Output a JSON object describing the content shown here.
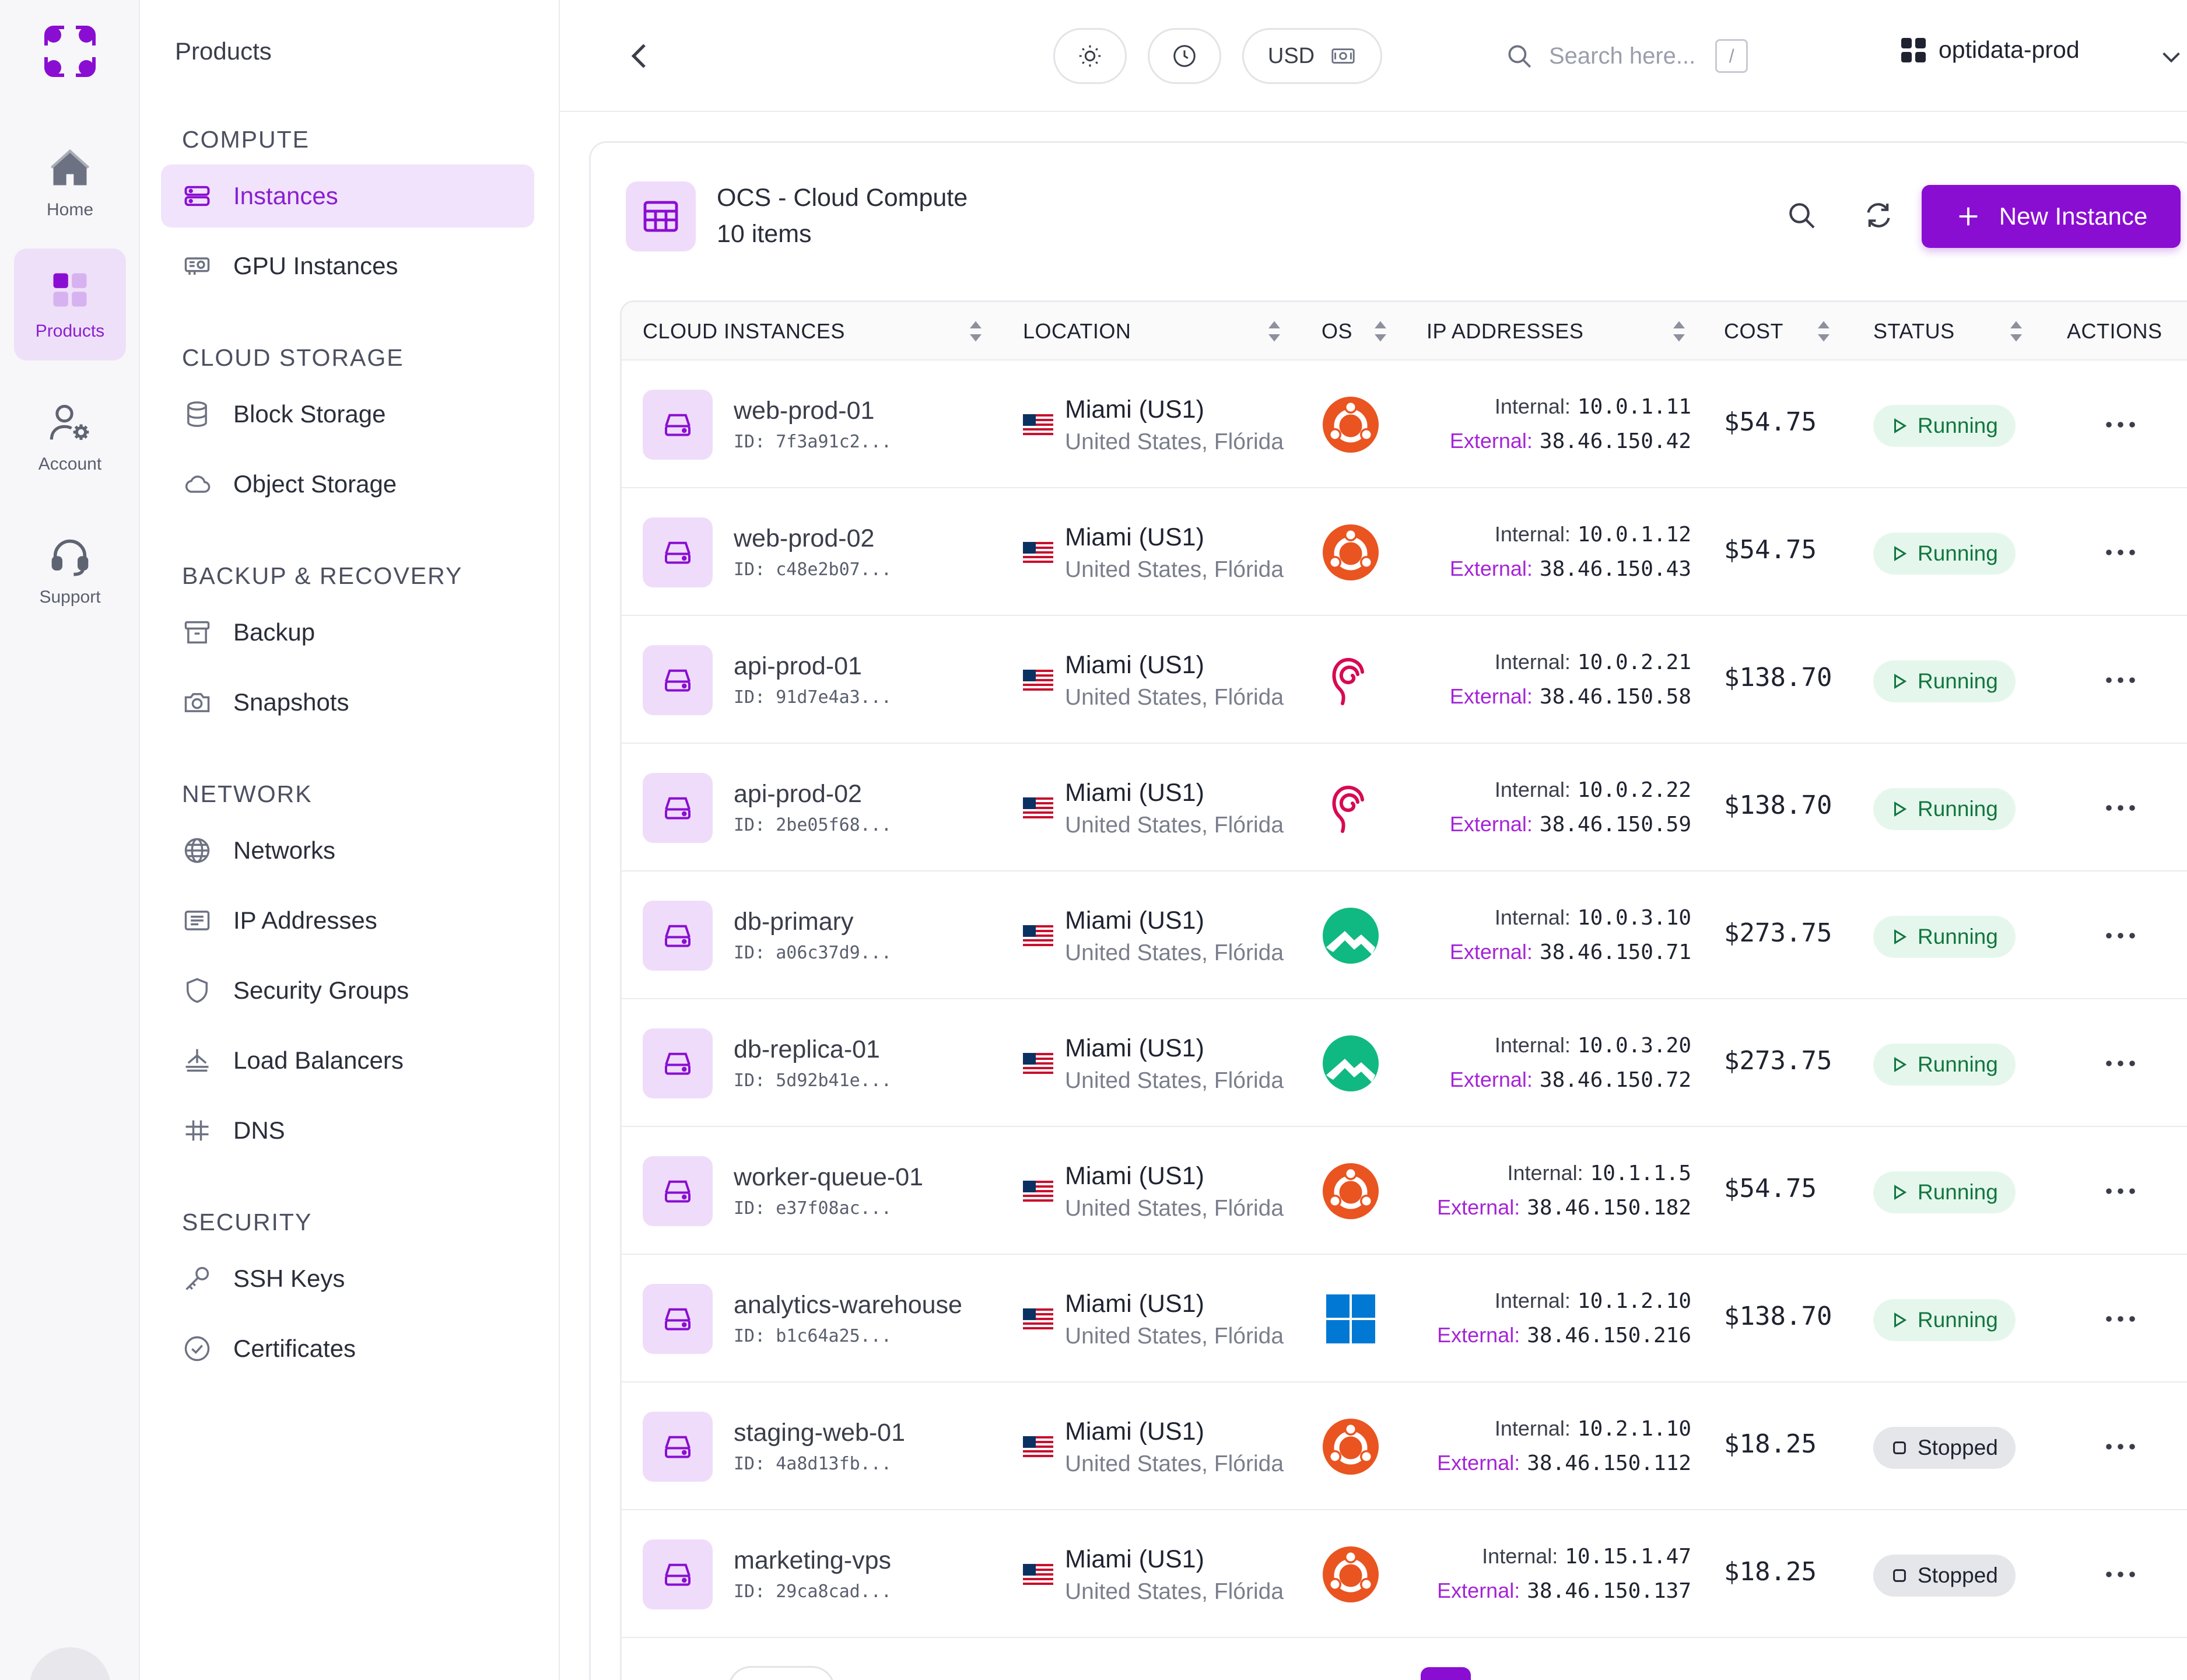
{
  "rail": {
    "items": [
      {
        "label": "Home",
        "icon": "home-icon"
      },
      {
        "label": "Products",
        "icon": "products-icon",
        "active": true
      },
      {
        "label": "Account",
        "icon": "account-icon"
      },
      {
        "label": "Support",
        "icon": "support-icon"
      }
    ]
  },
  "sidebar": {
    "title": "Products",
    "sections": [
      {
        "heading": "COMPUTE",
        "items": [
          {
            "label": "Instances",
            "icon": "server-icon",
            "active": true
          },
          {
            "label": "GPU Instances",
            "icon": "gpu-icon"
          }
        ]
      },
      {
        "heading": "CLOUD STORAGE",
        "items": [
          {
            "label": "Block Storage",
            "icon": "database-icon"
          },
          {
            "label": "Object Storage",
            "icon": "cloud-icon"
          }
        ]
      },
      {
        "heading": "BACKUP & RECOVERY",
        "items": [
          {
            "label": "Backup",
            "icon": "archive-icon"
          },
          {
            "label": "Snapshots",
            "icon": "camera-icon"
          }
        ]
      },
      {
        "heading": "NETWORK",
        "items": [
          {
            "label": "Networks",
            "icon": "globe-icon"
          },
          {
            "label": "IP Addresses",
            "icon": "ip-list-icon"
          },
          {
            "label": "Security Groups",
            "icon": "shield-icon"
          },
          {
            "label": "Load Balancers",
            "icon": "balancer-icon"
          },
          {
            "label": "DNS",
            "icon": "dns-icon"
          }
        ]
      },
      {
        "heading": "SECURITY",
        "items": [
          {
            "label": "SSH Keys",
            "icon": "key-icon"
          },
          {
            "label": "Certificates",
            "icon": "certificate-icon"
          }
        ]
      }
    ]
  },
  "topbar": {
    "currency": "USD",
    "search_placeholder": "Search here...",
    "search_shortcut": "/",
    "project": "optidata-prod"
  },
  "card": {
    "title": "OCS - Cloud Compute",
    "count": "10 items",
    "new_button": "New Instance"
  },
  "table": {
    "columns": [
      "CLOUD INSTANCES",
      "LOCATION",
      "OS",
      "IP ADDRESSES",
      "COST",
      "STATUS",
      "ACTIONS"
    ],
    "internal_label": "Internal:",
    "external_label": "External:",
    "rows": [
      {
        "name": "web-prod-01",
        "id": "ID: 7f3a91c2...",
        "location": "Miami (US1)",
        "region": "United States, Flórida",
        "os": "ubuntu",
        "internal": "10.0.1.11",
        "external": "38.46.150.42",
        "cost": "$54.75",
        "status": "Running"
      },
      {
        "name": "web-prod-02",
        "id": "ID: c48e2b07...",
        "location": "Miami (US1)",
        "region": "United States, Flórida",
        "os": "ubuntu",
        "internal": "10.0.1.12",
        "external": "38.46.150.43",
        "cost": "$54.75",
        "status": "Running"
      },
      {
        "name": "api-prod-01",
        "id": "ID: 91d7e4a3...",
        "location": "Miami (US1)",
        "region": "United States, Flórida",
        "os": "debian",
        "internal": "10.0.2.21",
        "external": "38.46.150.58",
        "cost": "$138.70",
        "status": "Running"
      },
      {
        "name": "api-prod-02",
        "id": "ID: 2be05f68...",
        "location": "Miami (US1)",
        "region": "United States, Flórida",
        "os": "debian",
        "internal": "10.0.2.22",
        "external": "38.46.150.59",
        "cost": "$138.70",
        "status": "Running"
      },
      {
        "name": "db-primary",
        "id": "ID: a06c37d9...",
        "location": "Miami (US1)",
        "region": "United States, Flórida",
        "os": "rocky",
        "internal": "10.0.3.10",
        "external": "38.46.150.71",
        "cost": "$273.75",
        "status": "Running"
      },
      {
        "name": "db-replica-01",
        "id": "ID: 5d92b41e...",
        "location": "Miami (US1)",
        "region": "United States, Flórida",
        "os": "rocky",
        "internal": "10.0.3.20",
        "external": "38.46.150.72",
        "cost": "$273.75",
        "status": "Running"
      },
      {
        "name": "worker-queue-01",
        "id": "ID: e37f08ac...",
        "location": "Miami (US1)",
        "region": "United States, Flórida",
        "os": "ubuntu",
        "internal": "10.1.1.5",
        "external": "38.46.150.182",
        "cost": "$54.75",
        "status": "Running"
      },
      {
        "name": "analytics-warehouse",
        "id": "ID: b1c64a25...",
        "location": "Miami (US1)",
        "region": "United States, Flórida",
        "os": "windows",
        "internal": "10.1.2.10",
        "external": "38.46.150.216",
        "cost": "$138.70",
        "status": "Running"
      },
      {
        "name": "staging-web-01",
        "id": "ID: 4a8d13fb...",
        "location": "Miami (US1)",
        "region": "United States, Flórida",
        "os": "ubuntu",
        "internal": "10.2.1.10",
        "external": "38.46.150.112",
        "cost": "$18.25",
        "status": "Stopped"
      },
      {
        "name": "marketing-vps",
        "id": "ID: 29ca8cad...",
        "location": "Miami (US1)",
        "region": "United States, Flórida",
        "os": "ubuntu",
        "internal": "10.15.1.47",
        "external": "38.46.150.137",
        "cost": "$18.25",
        "status": "Stopped"
      }
    ]
  },
  "colors": {
    "accent": "#8a0ed2",
    "accent_soft": "#efdcfa",
    "running_bg": "#e5f7ec",
    "running_fg": "#12763f",
    "stopped_bg": "#e5e6ea",
    "external_label": "#a524d6"
  }
}
